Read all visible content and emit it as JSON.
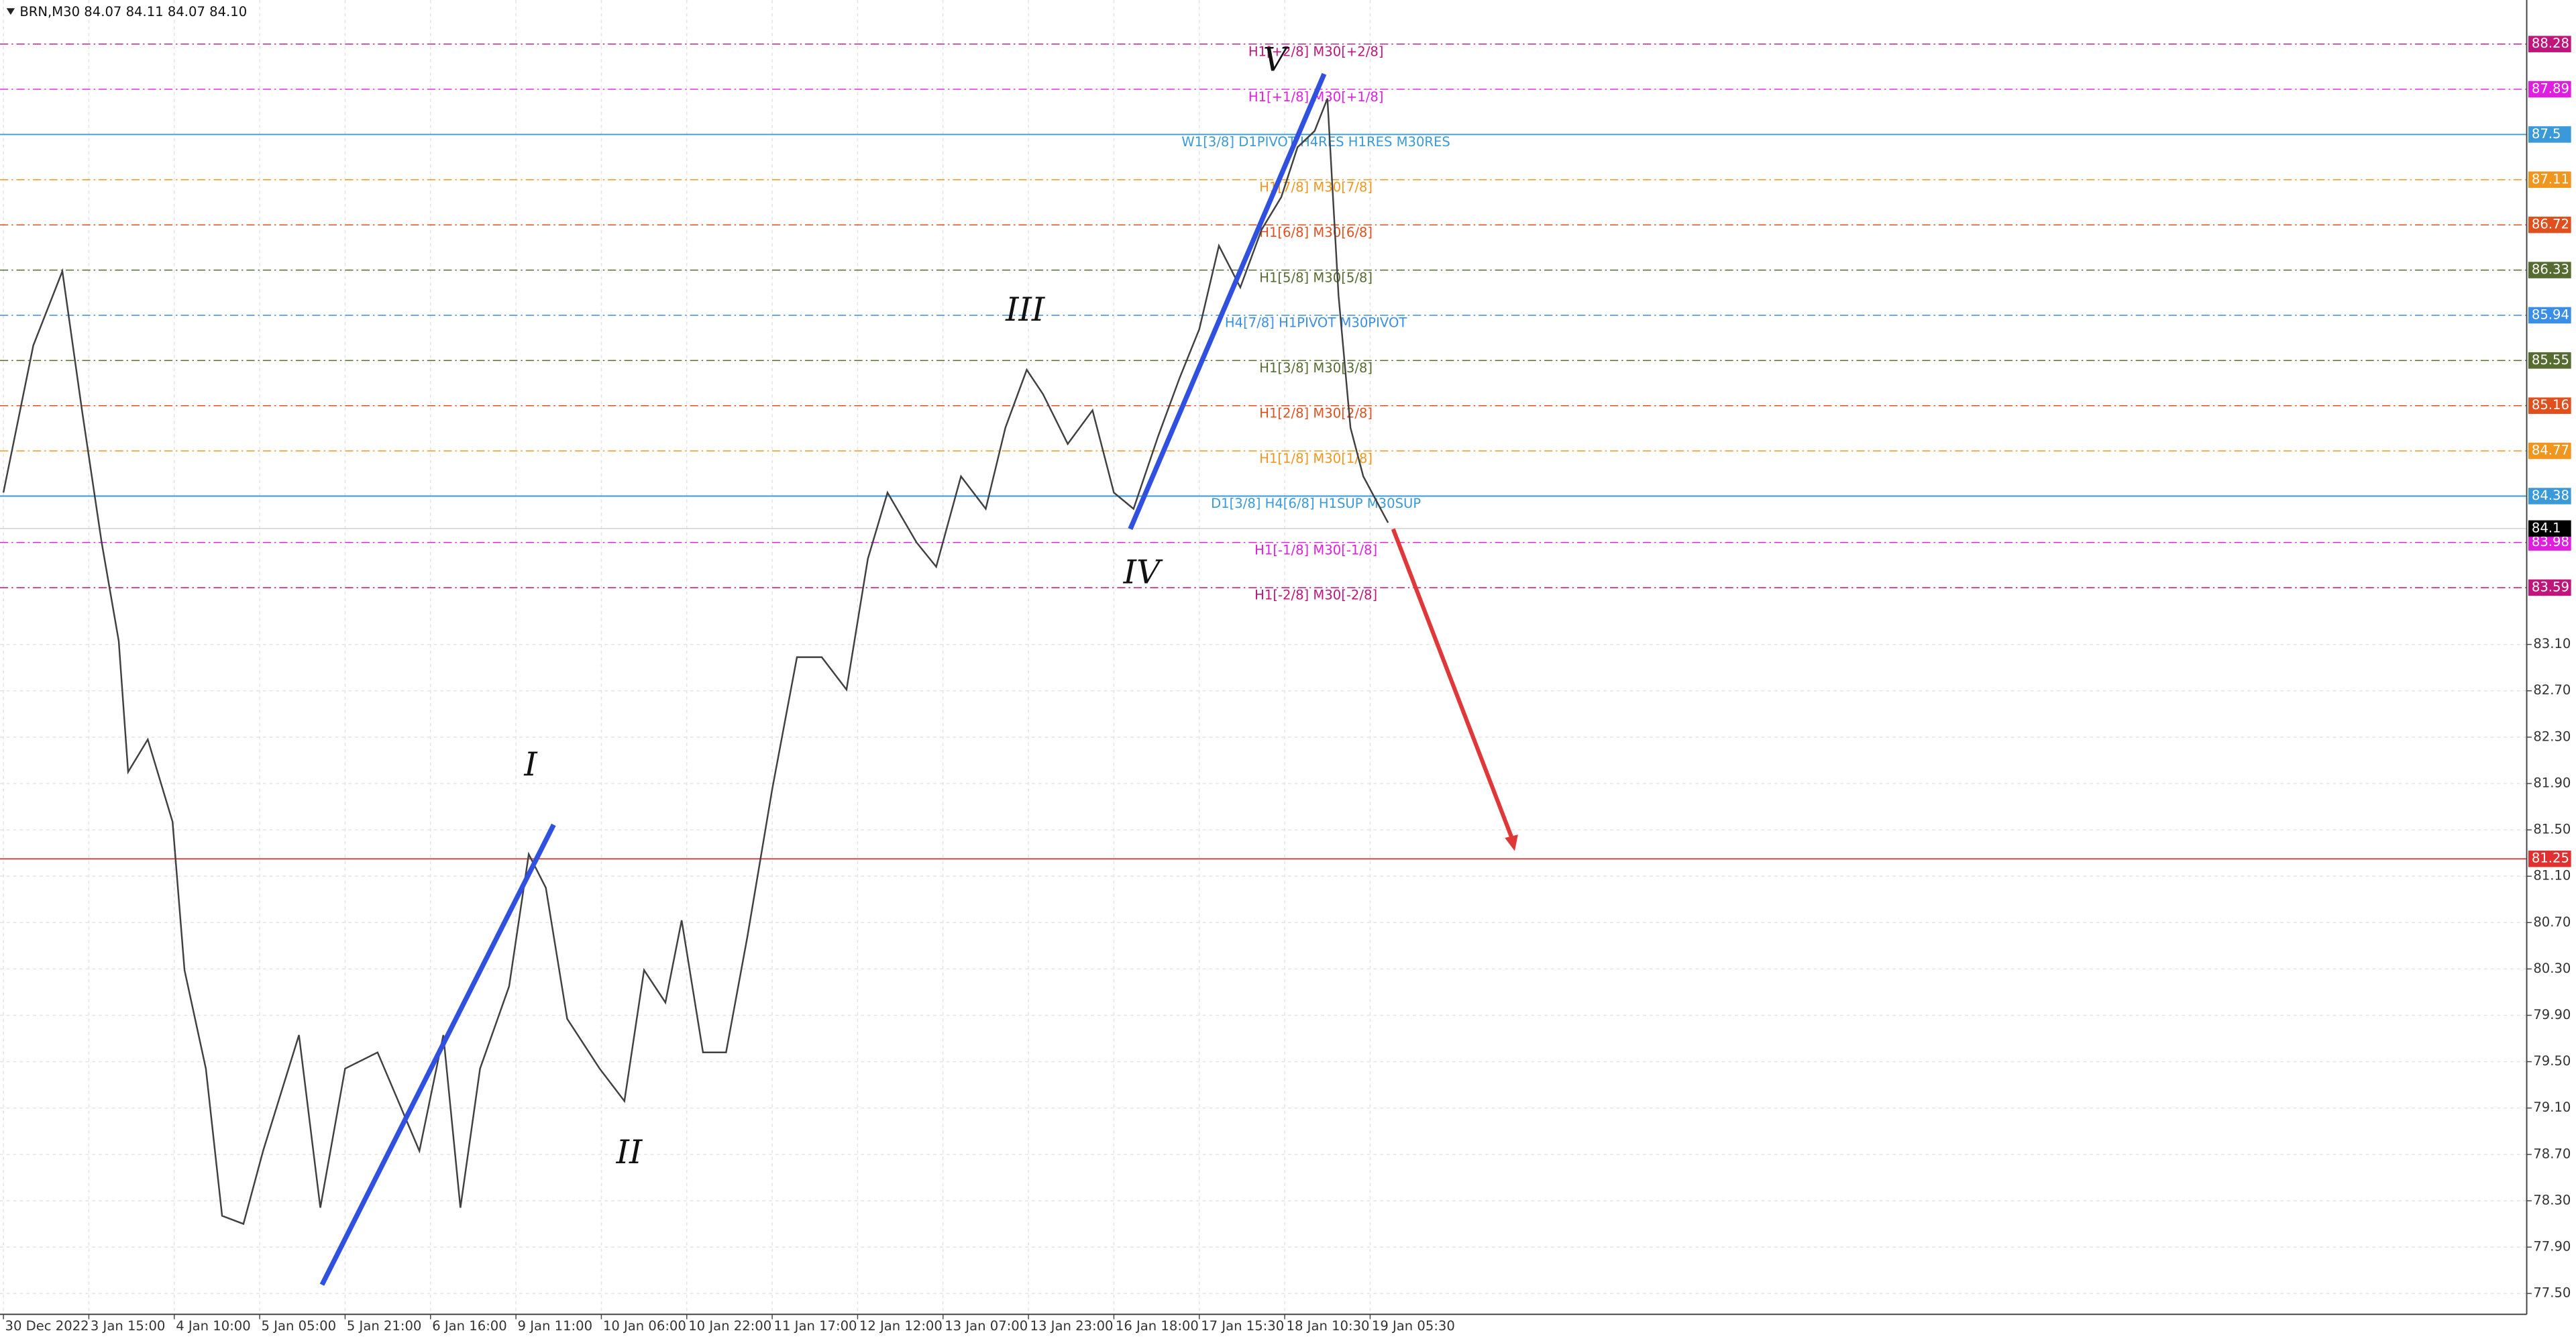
{
  "chart_data": {
    "type": "line",
    "title": "BRN,M30  84.07 84.11 84.07 84.10",
    "color": "#404040",
    "x": [
      0,
      0.35,
      0.69,
      0.92,
      1.15,
      1.35,
      1.46,
      1.69,
      1.98,
      2.12,
      2.37,
      2.56,
      2.81,
      3.04,
      3.46,
      3.71,
      4.0,
      4.38,
      4.87,
      5.15,
      5.35,
      5.58,
      5.92,
      6.15,
      6.35,
      6.6,
      6.98,
      7.27,
      7.5,
      7.75,
      7.94,
      8.19,
      8.46,
      8.71,
      9.0,
      9.29,
      9.58,
      9.87,
      10.12,
      10.35,
      10.69,
      10.92,
      11.21,
      11.5,
      11.73,
      11.98,
      12.17,
      12.46,
      12.75,
      13.0,
      13.23,
      13.52,
      13.77,
      14.0,
      14.23,
      14.48,
      14.73,
      14.96,
      15.15,
      15.35,
      15.5,
      15.63,
      15.77,
      15.92,
      16.21
    ],
    "values": [
      84.41,
      85.68,
      86.32,
      85.12,
      83.98,
      83.13,
      82.0,
      82.28,
      81.57,
      80.29,
      79.44,
      78.17,
      78.1,
      78.73,
      79.73,
      78.24,
      79.44,
      79.58,
      78.73,
      79.73,
      78.24,
      79.44,
      80.15,
      81.29,
      81.0,
      79.87,
      79.44,
      79.16,
      80.29,
      80.01,
      80.72,
      79.58,
      79.58,
      80.58,
      81.85,
      82.99,
      82.99,
      82.71,
      83.84,
      84.41,
      83.98,
      83.77,
      84.55,
      84.27,
      84.97,
      85.47,
      85.26,
      84.83,
      85.12,
      84.41,
      84.27,
      84.9,
      85.4,
      85.82,
      86.54,
      86.18,
      86.68,
      86.96,
      87.39,
      87.53,
      87.81,
      86.11,
      84.97,
      84.55,
      84.15
    ],
    "xlim": [
      -0.04,
      29.54
    ],
    "xticks": [
      {
        "value": 0,
        "label": "30 Dec 2022"
      },
      {
        "value": 1,
        "label": "3 Jan 15:00"
      },
      {
        "value": 2,
        "label": "4 Jan 10:00"
      },
      {
        "value": 3,
        "label": "5 Jan 05:00"
      },
      {
        "value": 4,
        "label": "5 Jan 21:00"
      },
      {
        "value": 5,
        "label": "6 Jan 16:00"
      },
      {
        "value": 6,
        "label": "9 Jan 11:00"
      },
      {
        "value": 7,
        "label": "10 Jan 06:00"
      },
      {
        "value": 8,
        "label": "10 Jan 22:00"
      },
      {
        "value": 9,
        "label": "11 Jan 17:00"
      },
      {
        "value": 10,
        "label": "12 Jan 12:00"
      },
      {
        "value": 11,
        "label": "13 Jan 07:00"
      },
      {
        "value": 12,
        "label": "13 Jan 23:00"
      },
      {
        "value": 13,
        "label": "16 Jan 18:00"
      },
      {
        "value": 14,
        "label": "17 Jan 15:30"
      },
      {
        "value": 15,
        "label": "18 Jan 10:30"
      },
      {
        "value": 16,
        "label": "19 Jan 05:30"
      }
    ],
    "ylim": [
      77.32,
      88.66
    ],
    "yticks": [
      {
        "value": 77.5,
        "label": "77.50"
      },
      {
        "value": 77.9,
        "label": "77.90"
      },
      {
        "value": 78.3,
        "label": "78.30"
      },
      {
        "value": 78.7,
        "label": "78.70"
      },
      {
        "value": 79.1,
        "label": "79.10"
      },
      {
        "value": 79.5,
        "label": "79.50"
      },
      {
        "value": 79.9,
        "label": "79.90"
      },
      {
        "value": 80.3,
        "label": "80.30"
      },
      {
        "value": 80.7,
        "label": "80.70"
      },
      {
        "value": 81.1,
        "label": "81.10"
      },
      {
        "value": 81.5,
        "label": "81.50"
      },
      {
        "value": 81.9,
        "label": "81.90"
      },
      {
        "value": 82.3,
        "label": "82.30"
      },
      {
        "value": 82.7,
        "label": "82.70"
      },
      {
        "value": 83.1,
        "label": "83.10"
      }
    ],
    "grid": true,
    "levels": [
      {
        "value": 88.28,
        "label": "H1[+2/8] M30[+2/8]",
        "color": "#c0157a",
        "dash": true
      },
      {
        "value": 87.89,
        "label": "H1[+1/8] M30[+1/8]",
        "color": "#e01ee0",
        "dash": true
      },
      {
        "value": 87.5,
        "label": "W1[3/8] D1PIVOT H4RES H1RES M30RES",
        "color": "#3a9ad9",
        "dash": false
      },
      {
        "value": 87.11,
        "label": "H1[7/8] M30[7/8]",
        "color": "#f0961e",
        "dash": true
      },
      {
        "value": 86.72,
        "label": "H1[6/8] M30[6/8]",
        "color": "#e0501e",
        "dash": true
      },
      {
        "value": 86.33,
        "label": "H1[5/8] M30[5/8]",
        "color": "#556b2f",
        "dash": true
      },
      {
        "value": 85.94,
        "label": "H4[7/8] H1PIVOT M30PIVOT",
        "color": "#3a8ee6",
        "dash": true
      },
      {
        "value": 85.55,
        "label": "H1[3/8] M30[3/8]",
        "color": "#556b2f",
        "dash": true
      },
      {
        "value": 85.16,
        "label": "H1[2/8] M30[2/8]",
        "color": "#e0501e",
        "dash": true
      },
      {
        "value": 84.77,
        "label": "H1[1/8] M30[1/8]",
        "color": "#f0961e",
        "dash": true
      },
      {
        "value": 84.38,
        "label": "D1[3/8] H4[6/8] H1SUP M30SUP",
        "color": "#3a9ad9",
        "dash": false
      },
      {
        "value": 83.98,
        "label": "H1[-1/8] M30[-1/8]",
        "color": "#e01ee0",
        "dash": true
      },
      {
        "value": 83.59,
        "label": "H1[-2/8] M30[-2/8]",
        "color": "#c0157a",
        "dash": true
      }
    ],
    "alert_level": {
      "value": 81.25,
      "color": "#e03030"
    },
    "last_price": 84.1,
    "waves": [
      "I",
      "II",
      "III",
      "IV",
      "V"
    ]
  }
}
